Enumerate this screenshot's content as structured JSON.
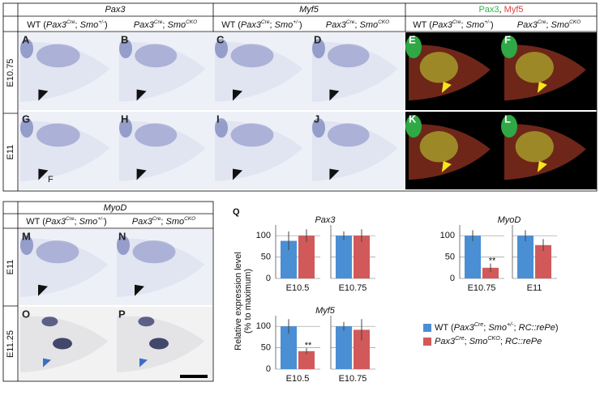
{
  "headers": {
    "pax3": "Pax3",
    "myf5": "Myf5",
    "myod": "MyoD",
    "comma": ", ",
    "wt": [
      "WT (",
      "Pax3",
      "Cre",
      "; ",
      "Smo",
      "+/-",
      ")"
    ],
    "cko": [
      "Pax3",
      "Cre",
      "; ",
      "Smo",
      "CKO"
    ]
  },
  "rows": {
    "top": [
      "E10.75",
      "E11"
    ],
    "bottom": [
      "E11",
      "E11.25"
    ]
  },
  "panels": [
    "A",
    "B",
    "C",
    "D",
    "E",
    "F",
    "G",
    "H",
    "I",
    "J",
    "K",
    "L",
    "M",
    "N",
    "O",
    "P"
  ],
  "stray_letter": "F",
  "panel_q": {
    "label": "Q",
    "y_label": [
      "Relative expression level",
      "(% to maximum)"
    ],
    "ylim": [
      0,
      125
    ],
    "yticks": [
      0,
      50,
      100
    ],
    "series": [
      {
        "name": [
          "WT (",
          "Pax3",
          "Cre",
          "; ",
          "Smo",
          "+/-",
          "; ",
          "RC::rePe",
          ")"
        ],
        "color": "#4a8fd4"
      },
      {
        "name": [
          "Pax3",
          "Cre",
          "; ",
          "Smo",
          "CKO",
          "; ",
          "RC::rePe"
        ],
        "color": "#d2595a"
      }
    ],
    "charts": [
      {
        "title": "Pax3",
        "category": "E10.5",
        "values": [
          88,
          100
        ],
        "errors": [
          22,
          15
        ]
      },
      {
        "category": "E10.75",
        "values": [
          100,
          100
        ],
        "errors": [
          10,
          15
        ]
      },
      {
        "title": "MyoD",
        "category": "E10.75",
        "values": [
          100,
          25
        ],
        "errors": [
          13,
          10
        ],
        "annotation": "**"
      },
      {
        "category": "E11",
        "values": [
          100,
          78
        ],
        "errors": [
          13,
          14
        ]
      },
      {
        "title": "Myf5",
        "category": "E10.5",
        "values": [
          100,
          42
        ],
        "errors": [
          17,
          7
        ],
        "annotation": "**"
      },
      {
        "category": "E10.75",
        "values": [
          100,
          92
        ],
        "errors": [
          10,
          25
        ]
      }
    ]
  }
}
